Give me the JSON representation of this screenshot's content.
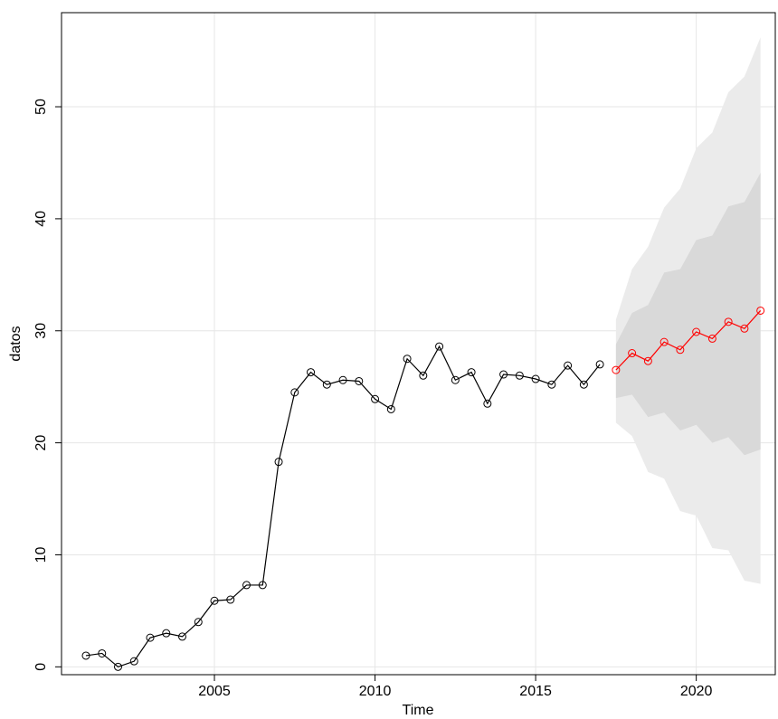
{
  "chart_data": {
    "type": "forecast",
    "x_label": "Time",
    "y_label": "datos",
    "xlim": [
      2000.24,
      2022.46
    ],
    "ylim": [
      -0.7,
      58.4
    ],
    "xticks": [
      2005,
      2010,
      2015,
      2020
    ],
    "yticks": [
      0,
      10,
      20,
      30,
      40,
      50
    ],
    "grid": true,
    "grid_color": "#e6e6e6",
    "series": [
      {
        "color": "#000000",
        "x": [
          2001,
          2001.5,
          2002,
          2002.5,
          2003,
          2003.5,
          2004,
          2004.5,
          2005,
          2005.5,
          2006,
          2006.5,
          2007,
          2007.5,
          2008,
          2008.5,
          2009,
          2009.5,
          2010,
          2010.5,
          2011,
          2011.5,
          2012,
          2012.5,
          2013,
          2013.5,
          2014,
          2014.5,
          2015,
          2015.5,
          2016,
          2016.5,
          2017
        ],
        "values": [
          1.0,
          1.2,
          0,
          0.5,
          2.6,
          3.0,
          2.7,
          4.0,
          5.9,
          6.0,
          7.3,
          7.3,
          18.3,
          24.5,
          26.3,
          25.2,
          25.6,
          25.5,
          23.9,
          23.0,
          27.5,
          26.0,
          28.6,
          25.6,
          26.3,
          23.5,
          26.1,
          26.0,
          25.7,
          25.2,
          26.9,
          25.2,
          27.0
        ]
      },
      {
        "color": "#ff0000",
        "x": [
          2017.5,
          2018,
          2018.5,
          2019,
          2019.5,
          2020,
          2020.5,
          2021,
          2021.5,
          2022
        ],
        "values": [
          26.5,
          28.0,
          27.3,
          29.0,
          28.3,
          29.9,
          29.3,
          30.8,
          30.2,
          31.8
        ]
      }
    ],
    "bands": [
      {
        "color": "#ebebeb",
        "x": [
          2017.5,
          2018,
          2018.5,
          2019,
          2019.5,
          2020,
          2020.5,
          2021,
          2021.5,
          2022
        ],
        "lower": [
          21.8,
          20.6,
          17.4,
          16.8,
          13.9,
          13.5,
          10.6,
          10.4,
          7.7,
          7.4
        ],
        "upper": [
          31.0,
          35.5,
          37.5,
          41.0,
          42.7,
          46.3,
          47.7,
          51.3,
          52.7,
          56.2
        ]
      },
      {
        "color": "#d9d9d9",
        "x": [
          2017.5,
          2018,
          2018.5,
          2019,
          2019.5,
          2020,
          2020.5,
          2021,
          2021.5,
          2022
        ],
        "lower": [
          24.0,
          24.3,
          22.3,
          22.7,
          21.1,
          21.6,
          20.0,
          20.5,
          18.9,
          19.4
        ],
        "upper": [
          28.8,
          31.6,
          32.3,
          35.2,
          35.5,
          38.1,
          38.5,
          41.1,
          41.5,
          44.1
        ]
      }
    ]
  }
}
